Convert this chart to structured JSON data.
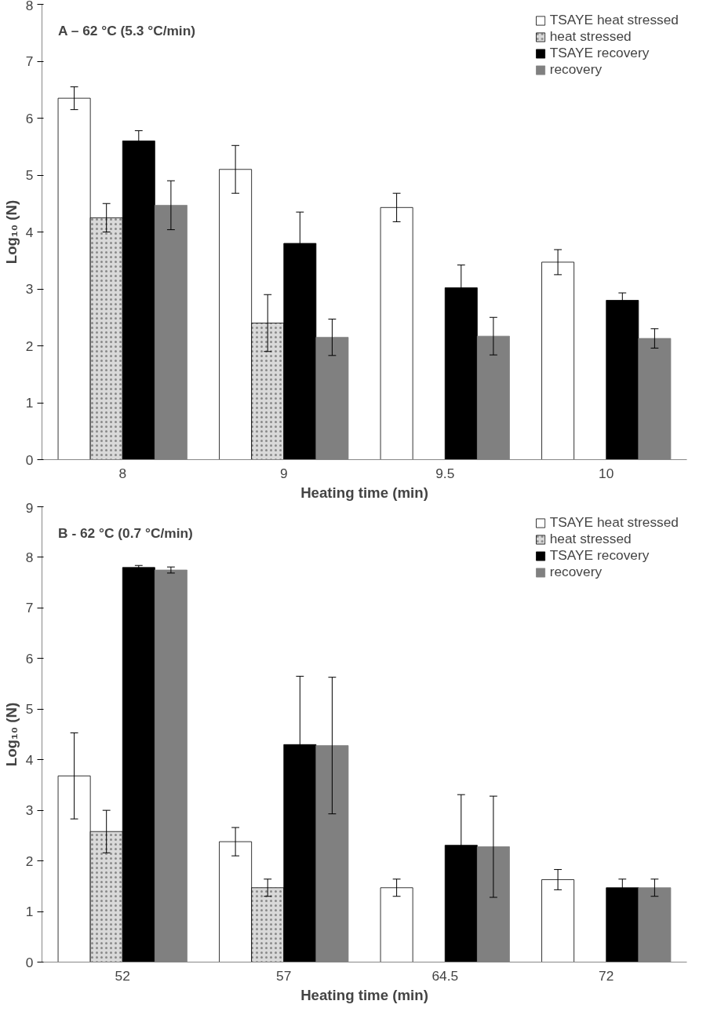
{
  "chart_data": [
    {
      "type": "bar",
      "title": "A – 62 °C (5.3 °C/min)",
      "xlabel": "Heating time (min)",
      "ylabel": "Log₁₀ (N)",
      "categories": [
        "8",
        "9",
        "9.5",
        "10"
      ],
      "ylim": [
        0,
        8
      ],
      "yticks": [
        0,
        1,
        2,
        3,
        4,
        5,
        6,
        7,
        8
      ],
      "grid": false,
      "legend": "top right",
      "series": [
        {
          "name": "TSAYE heat stressed",
          "color": "#ffffff",
          "values": [
            6.35,
            5.1,
            4.43,
            3.47
          ],
          "errors": [
            0.2,
            0.42,
            0.25,
            0.22
          ]
        },
        {
          "name": "heat stressed",
          "color": "#d9d9d9",
          "values": [
            4.25,
            2.4,
            null,
            null
          ],
          "errors": [
            0.25,
            0.5,
            null,
            null
          ]
        },
        {
          "name": "TSAYE recovery",
          "color": "#000000",
          "values": [
            5.6,
            3.8,
            3.02,
            2.8
          ],
          "errors": [
            0.18,
            0.55,
            0.4,
            0.13
          ]
        },
        {
          "name": "recovery",
          "color": "#808080",
          "values": [
            4.47,
            2.15,
            2.17,
            2.13
          ],
          "errors": [
            0.43,
            0.32,
            0.33,
            0.17
          ]
        }
      ]
    },
    {
      "type": "bar",
      "title": "B - 62 °C (0.7 °C/min)",
      "xlabel": "Heating time (min)",
      "ylabel": "Log₁₀ (N)",
      "categories": [
        "52",
        "57",
        "64.5",
        "72"
      ],
      "ylim": [
        0,
        9
      ],
      "yticks": [
        0,
        1,
        2,
        3,
        4,
        5,
        6,
        7,
        8,
        9
      ],
      "grid": false,
      "legend": "top right",
      "series": [
        {
          "name": "TSAYE heat stressed",
          "color": "#ffffff",
          "values": [
            3.68,
            2.38,
            1.47,
            1.63
          ],
          "errors": [
            0.85,
            0.28,
            0.17,
            0.2
          ]
        },
        {
          "name": "heat stressed",
          "color": "#d9d9d9",
          "values": [
            2.58,
            1.47,
            null,
            null
          ],
          "errors": [
            0.42,
            0.17,
            null,
            null
          ]
        },
        {
          "name": "TSAYE recovery",
          "color": "#000000",
          "values": [
            7.8,
            4.3,
            2.31,
            1.47
          ],
          "errors": [
            0.04,
            1.35,
            1.0,
            0.17
          ]
        },
        {
          "name": "recovery",
          "color": "#808080",
          "values": [
            7.75,
            4.28,
            2.28,
            1.47
          ],
          "errors": [
            0.06,
            1.35,
            1.0,
            0.17
          ]
        }
      ]
    }
  ]
}
